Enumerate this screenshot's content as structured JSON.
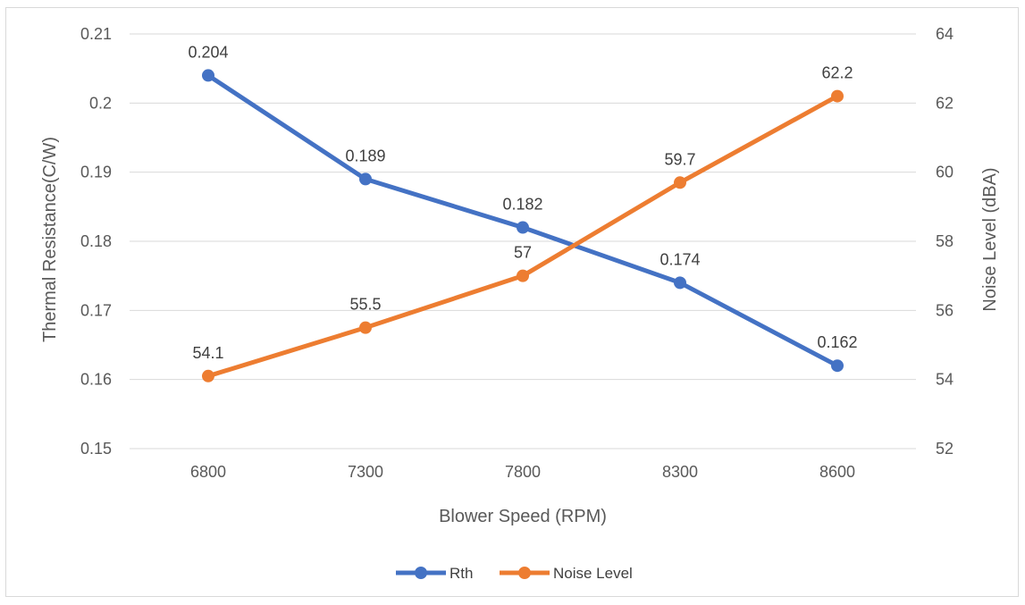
{
  "chart_data": {
    "type": "line",
    "title": "",
    "xlabel": "Blower Speed (RPM)",
    "ylabel_left": "Thermal Resistance(C/W)",
    "ylabel_right": "Noise Level (dBA)",
    "categories": [
      "6800",
      "7300",
      "7800",
      "8300",
      "8600"
    ],
    "y_left": {
      "min": 0.15,
      "max": 0.21,
      "step": 0.01,
      "tick_labels": [
        "0.15",
        "0.16",
        "0.17",
        "0.18",
        "0.19",
        "0.2",
        "0.21"
      ]
    },
    "y_right": {
      "min": 52,
      "max": 64,
      "step": 2,
      "tick_labels": [
        "52",
        "54",
        "56",
        "58",
        "60",
        "62",
        "64"
      ]
    },
    "grid": true,
    "legend_position": "bottom",
    "series": [
      {
        "name": "Rth",
        "axis": "left",
        "color": "#4472c4",
        "values": [
          0.204,
          0.189,
          0.182,
          0.174,
          0.162
        ],
        "labels": [
          "0.204",
          "0.189",
          "0.182",
          "0.174",
          "0.162"
        ]
      },
      {
        "name": "Noise Level",
        "axis": "right",
        "color": "#ed7d31",
        "values": [
          54.1,
          55.5,
          57,
          59.7,
          62.2
        ],
        "labels": [
          "54.1",
          "55.5",
          "57",
          "59.7",
          "62.2"
        ]
      }
    ]
  }
}
